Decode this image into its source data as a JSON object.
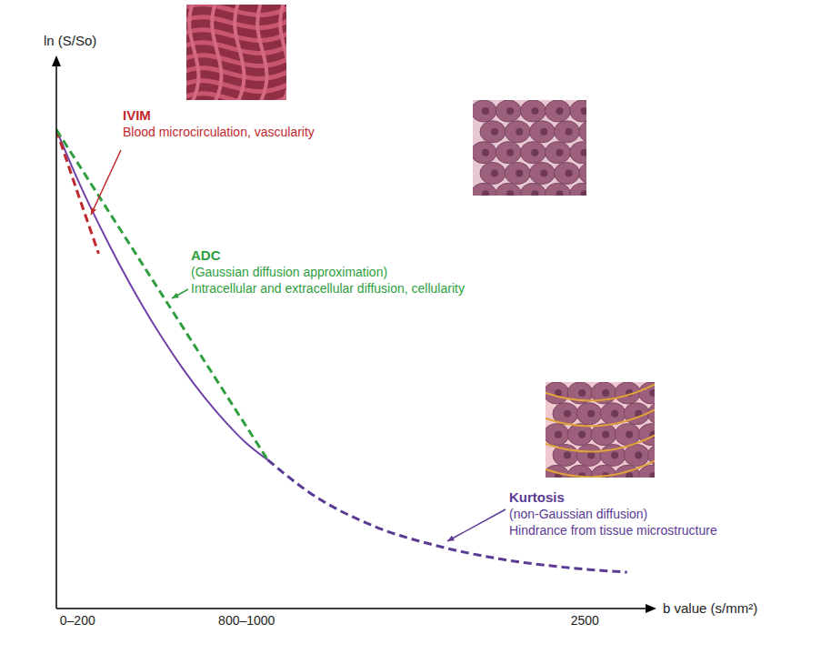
{
  "chart_data": {
    "type": "line",
    "x_label": "b value (s/mm²)",
    "y_label": "ln (S/So)",
    "x": [
      0,
      100,
      200,
      300,
      400,
      500,
      600,
      700,
      800,
      900,
      1000,
      1200,
      1500,
      1800,
      2100,
      2400,
      2700
    ],
    "xlim": [
      0,
      2800
    ],
    "xticks": [
      {
        "value": 100,
        "label": "0–200"
      },
      {
        "value": 900,
        "label": "800–1000"
      },
      2500
    ],
    "ylim": [
      -2.9,
      0.4
    ],
    "yticks": [],
    "tick_labels": "x",
    "series": [
      {
        "color": "#7040a8",
        "line_style": "solid",
        "values": [
          0,
          -0.3,
          -0.57,
          -0.82,
          -1.05,
          -1.26,
          -1.45,
          -1.62,
          -1.77,
          -1.9,
          -2.0,
          null,
          null,
          null,
          null,
          null,
          null
        ]
      },
      {
        "name": "IVIM",
        "description": [
          "Blood microcirculation, vascularity"
        ],
        "color": "#c0282d",
        "line_style": "dashed",
        "values": [
          0,
          -0.38,
          -0.75,
          null,
          null,
          null,
          null,
          null,
          null,
          null,
          null,
          null,
          null,
          null,
          null,
          null,
          null
        ]
      },
      {
        "name": "ADC",
        "description": [
          "(Gaussian diffusion approximation)",
          "Intracellular and extracellular diffusion, cellularity"
        ],
        "color": "#2e9e3e",
        "line_style": "dashed",
        "values": [
          0,
          -0.2,
          -0.4,
          -0.6,
          -0.8,
          -1.0,
          -1.2,
          -1.4,
          -1.6,
          -1.8,
          -2.0,
          null,
          null,
          null,
          null,
          null,
          null
        ]
      },
      {
        "name": "Kurtosis",
        "description": [
          "(non-Gaussian diffusion)",
          "Hindrance from tissue microstructure"
        ],
        "color": "#5b3a94",
        "line_style": "dashed",
        "values": [
          null,
          null,
          null,
          null,
          null,
          null,
          null,
          null,
          null,
          null,
          -2.0,
          -2.2,
          -2.4,
          -2.52,
          -2.6,
          -2.65,
          -2.68
        ]
      }
    ]
  }
}
